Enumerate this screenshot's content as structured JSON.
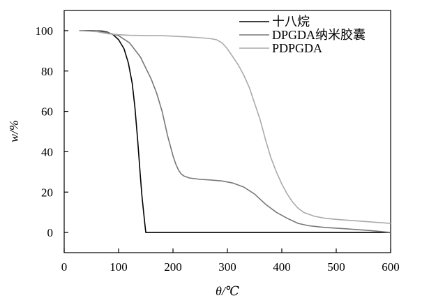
{
  "chart_data": {
    "type": "line",
    "xlabel": "θ/℃",
    "ylabel": "w/%",
    "xlim": [
      0,
      600
    ],
    "ylim": [
      -10,
      110
    ],
    "xticks": [
      0,
      100,
      200,
      300,
      400,
      500,
      600
    ],
    "yticks": [
      0,
      20,
      40,
      60,
      80,
      100
    ],
    "grid": false,
    "legend": "top-right",
    "series": [
      {
        "name": "十八烷",
        "color": "#000000",
        "points": [
          [
            28,
            100
          ],
          [
            50,
            100
          ],
          [
            70,
            99.8
          ],
          [
            80,
            99.2
          ],
          [
            90,
            98
          ],
          [
            100,
            95.5
          ],
          [
            110,
            91
          ],
          [
            118,
            84
          ],
          [
            125,
            74
          ],
          [
            130,
            62
          ],
          [
            135,
            46
          ],
          [
            140,
            28
          ],
          [
            143,
            18
          ],
          [
            146,
            10
          ],
          [
            148,
            5
          ],
          [
            150,
            0
          ],
          [
            600,
            0
          ]
        ]
      },
      {
        "name": "DPGDA纳米胶囊",
        "color": "#777777",
        "points": [
          [
            28,
            100
          ],
          [
            60,
            99.8
          ],
          [
            80,
            99
          ],
          [
            100,
            97.5
          ],
          [
            120,
            94
          ],
          [
            140,
            87
          ],
          [
            160,
            76
          ],
          [
            170,
            69
          ],
          [
            180,
            60
          ],
          [
            190,
            48
          ],
          [
            200,
            38
          ],
          [
            205,
            34
          ],
          [
            210,
            31
          ],
          [
            215,
            29
          ],
          [
            220,
            28
          ],
          [
            230,
            27
          ],
          [
            250,
            26.3
          ],
          [
            270,
            26
          ],
          [
            290,
            25.5
          ],
          [
            310,
            24.5
          ],
          [
            330,
            22.5
          ],
          [
            350,
            19
          ],
          [
            370,
            14
          ],
          [
            390,
            10
          ],
          [
            410,
            7
          ],
          [
            430,
            4.5
          ],
          [
            450,
            3.3
          ],
          [
            480,
            2.5
          ],
          [
            520,
            1.8
          ],
          [
            560,
            1
          ],
          [
            600,
            0
          ]
        ]
      },
      {
        "name": "PDPGDA",
        "color": "#aaaaaa",
        "points": [
          [
            28,
            100
          ],
          [
            60,
            99.5
          ],
          [
            80,
            98.5
          ],
          [
            100,
            98
          ],
          [
            120,
            97.7
          ],
          [
            150,
            97.6
          ],
          [
            180,
            97.5
          ],
          [
            220,
            97
          ],
          [
            250,
            96.5
          ],
          [
            270,
            96
          ],
          [
            280,
            95.5
          ],
          [
            290,
            94
          ],
          [
            300,
            91
          ],
          [
            310,
            87
          ],
          [
            320,
            83
          ],
          [
            330,
            78
          ],
          [
            340,
            72
          ],
          [
            350,
            64
          ],
          [
            360,
            56
          ],
          [
            370,
            46
          ],
          [
            380,
            37
          ],
          [
            390,
            30
          ],
          [
            400,
            24
          ],
          [
            410,
            19
          ],
          [
            420,
            15
          ],
          [
            430,
            12
          ],
          [
            440,
            10
          ],
          [
            450,
            9
          ],
          [
            460,
            8
          ],
          [
            480,
            7
          ],
          [
            500,
            6.5
          ],
          [
            550,
            5.5
          ],
          [
            600,
            4.5
          ]
        ]
      }
    ]
  }
}
